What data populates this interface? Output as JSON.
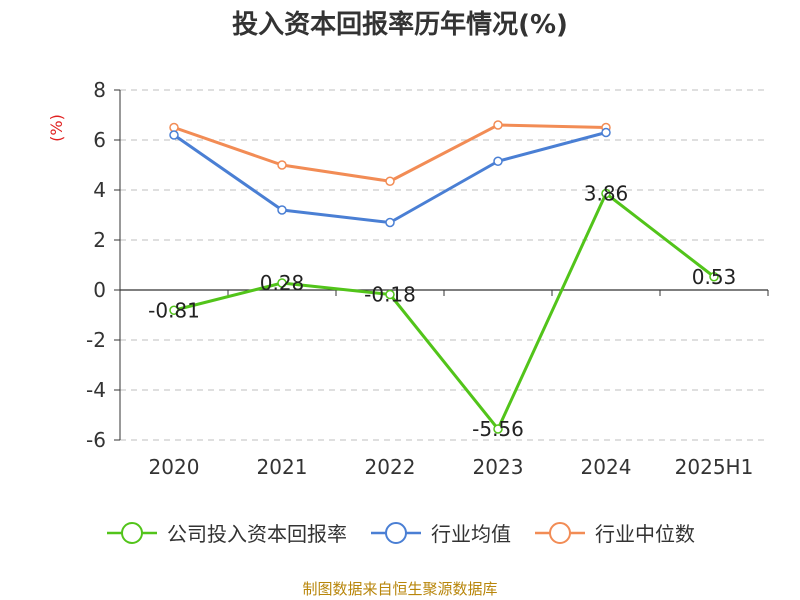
{
  "title": "投入资本回报率历年情况(%)",
  "source": "制图数据来自恒生聚源数据库",
  "chart_data": {
    "type": "line",
    "title": "投入资本回报率历年情况(%)",
    "ylabel": "(%)",
    "xlabel": "",
    "categories": [
      "2020",
      "2021",
      "2022",
      "2023",
      "2024",
      "2025H1"
    ],
    "ylim": [
      -6,
      8
    ],
    "yticks": [
      -6,
      -4,
      -2,
      0,
      2,
      4,
      6,
      8
    ],
    "grid": true,
    "legend_position": "bottom",
    "series": [
      {
        "name": "公司投入资本回报率",
        "color": "#52c41a",
        "values": [
          -0.81,
          0.28,
          -0.18,
          -5.56,
          3.86,
          0.53
        ],
        "labels": [
          "-0.81",
          "0.28",
          "-0.18",
          "-5.56",
          "3.86",
          "0.53"
        ]
      },
      {
        "name": "行业均值",
        "color": "#4a7fd4",
        "values": [
          6.2,
          3.2,
          2.7,
          5.15,
          6.3,
          null
        ]
      },
      {
        "name": "行业中位数",
        "color": "#f28c55",
        "values": [
          6.5,
          5.0,
          4.35,
          6.6,
          6.5,
          null
        ]
      }
    ]
  }
}
